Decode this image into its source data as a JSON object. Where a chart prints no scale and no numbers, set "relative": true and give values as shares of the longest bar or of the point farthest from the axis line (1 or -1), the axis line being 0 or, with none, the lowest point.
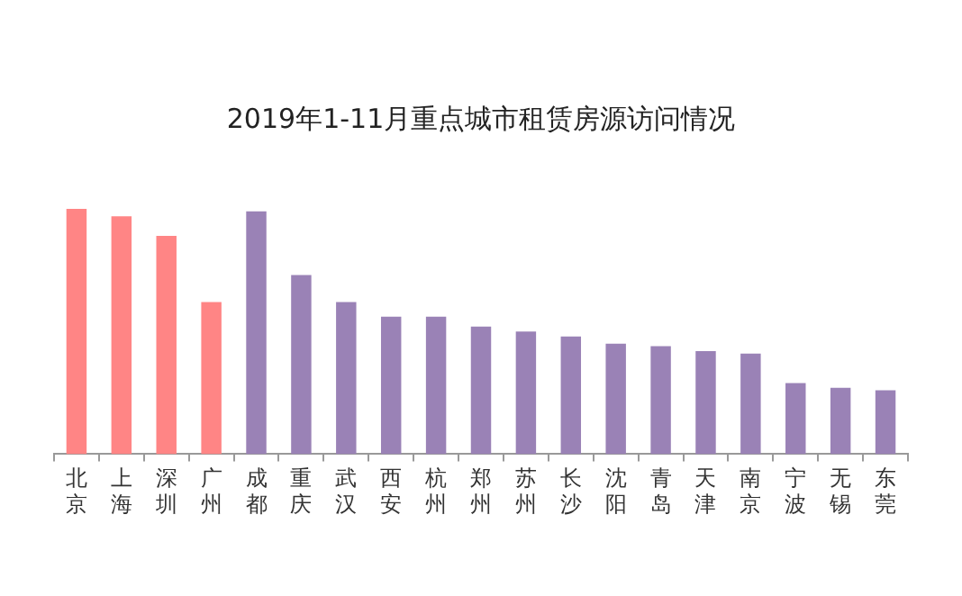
{
  "chart_data": {
    "type": "bar",
    "title": "2019年1-11月重点城市租赁房源访问情况",
    "relative": true,
    "categories": [
      "北京",
      "上海",
      "深圳",
      "广州",
      "成都",
      "重庆",
      "武汉",
      "西安",
      "杭州",
      "郑州",
      "苏州",
      "长沙",
      "沈阳",
      "青岛",
      "天津",
      "南京",
      "宁波",
      "无锡",
      "东莞"
    ],
    "values": [
      1,
      0.97,
      0.89,
      0.62,
      0.99,
      0.73,
      0.62,
      0.56,
      0.56,
      0.52,
      0.5,
      0.48,
      0.45,
      0.44,
      0.42,
      0.41,
      0.29,
      0.27,
      0.26
    ],
    "colors": [
      "#ff8585",
      "#ff8585",
      "#ff8585",
      "#ff8585",
      "#9a82b6",
      "#9a82b6",
      "#9a82b6",
      "#9a82b6",
      "#9a82b6",
      "#9a82b6",
      "#9a82b6",
      "#9a82b6",
      "#9a82b6",
      "#9a82b6",
      "#9a82b6",
      "#9a82b6",
      "#9a82b6",
      "#9a82b6",
      "#9a82b6"
    ],
    "grid": false,
    "legend": false
  }
}
